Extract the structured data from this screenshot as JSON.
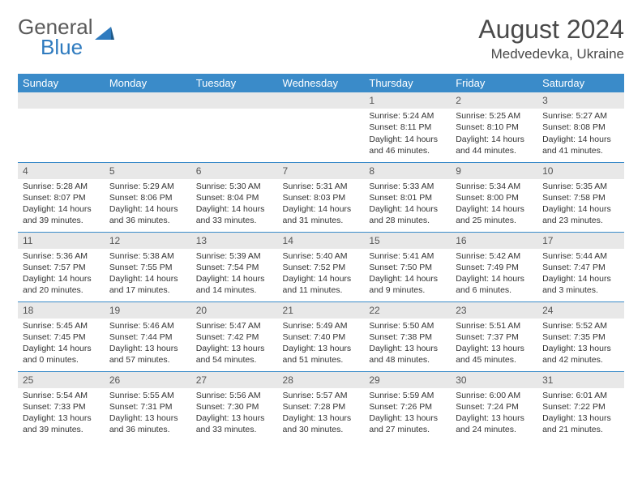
{
  "logo": {
    "text1": "General",
    "text2": "Blue"
  },
  "title": "August 2024",
  "location": "Medvedevka, Ukraine",
  "colors": {
    "header_bg": "#3a8bc9",
    "header_text": "#ffffff",
    "daynum_bg": "#e8e8e8",
    "row_sep": "#3a8bc9",
    "logo_gray": "#5a5a5a",
    "logo_blue": "#2f7bbf"
  },
  "day_headers": [
    "Sunday",
    "Monday",
    "Tuesday",
    "Wednesday",
    "Thursday",
    "Friday",
    "Saturday"
  ],
  "weeks": [
    [
      null,
      null,
      null,
      null,
      {
        "n": "1",
        "sr": "5:24 AM",
        "ss": "8:11 PM",
        "dl": "14 hours and 46 minutes."
      },
      {
        "n": "2",
        "sr": "5:25 AM",
        "ss": "8:10 PM",
        "dl": "14 hours and 44 minutes."
      },
      {
        "n": "3",
        "sr": "5:27 AM",
        "ss": "8:08 PM",
        "dl": "14 hours and 41 minutes."
      }
    ],
    [
      {
        "n": "4",
        "sr": "5:28 AM",
        "ss": "8:07 PM",
        "dl": "14 hours and 39 minutes."
      },
      {
        "n": "5",
        "sr": "5:29 AM",
        "ss": "8:06 PM",
        "dl": "14 hours and 36 minutes."
      },
      {
        "n": "6",
        "sr": "5:30 AM",
        "ss": "8:04 PM",
        "dl": "14 hours and 33 minutes."
      },
      {
        "n": "7",
        "sr": "5:31 AM",
        "ss": "8:03 PM",
        "dl": "14 hours and 31 minutes."
      },
      {
        "n": "8",
        "sr": "5:33 AM",
        "ss": "8:01 PM",
        "dl": "14 hours and 28 minutes."
      },
      {
        "n": "9",
        "sr": "5:34 AM",
        "ss": "8:00 PM",
        "dl": "14 hours and 25 minutes."
      },
      {
        "n": "10",
        "sr": "5:35 AM",
        "ss": "7:58 PM",
        "dl": "14 hours and 23 minutes."
      }
    ],
    [
      {
        "n": "11",
        "sr": "5:36 AM",
        "ss": "7:57 PM",
        "dl": "14 hours and 20 minutes."
      },
      {
        "n": "12",
        "sr": "5:38 AM",
        "ss": "7:55 PM",
        "dl": "14 hours and 17 minutes."
      },
      {
        "n": "13",
        "sr": "5:39 AM",
        "ss": "7:54 PM",
        "dl": "14 hours and 14 minutes."
      },
      {
        "n": "14",
        "sr": "5:40 AM",
        "ss": "7:52 PM",
        "dl": "14 hours and 11 minutes."
      },
      {
        "n": "15",
        "sr": "5:41 AM",
        "ss": "7:50 PM",
        "dl": "14 hours and 9 minutes."
      },
      {
        "n": "16",
        "sr": "5:42 AM",
        "ss": "7:49 PM",
        "dl": "14 hours and 6 minutes."
      },
      {
        "n": "17",
        "sr": "5:44 AM",
        "ss": "7:47 PM",
        "dl": "14 hours and 3 minutes."
      }
    ],
    [
      {
        "n": "18",
        "sr": "5:45 AM",
        "ss": "7:45 PM",
        "dl": "14 hours and 0 minutes."
      },
      {
        "n": "19",
        "sr": "5:46 AM",
        "ss": "7:44 PM",
        "dl": "13 hours and 57 minutes."
      },
      {
        "n": "20",
        "sr": "5:47 AM",
        "ss": "7:42 PM",
        "dl": "13 hours and 54 minutes."
      },
      {
        "n": "21",
        "sr": "5:49 AM",
        "ss": "7:40 PM",
        "dl": "13 hours and 51 minutes."
      },
      {
        "n": "22",
        "sr": "5:50 AM",
        "ss": "7:38 PM",
        "dl": "13 hours and 48 minutes."
      },
      {
        "n": "23",
        "sr": "5:51 AM",
        "ss": "7:37 PM",
        "dl": "13 hours and 45 minutes."
      },
      {
        "n": "24",
        "sr": "5:52 AM",
        "ss": "7:35 PM",
        "dl": "13 hours and 42 minutes."
      }
    ],
    [
      {
        "n": "25",
        "sr": "5:54 AM",
        "ss": "7:33 PM",
        "dl": "13 hours and 39 minutes."
      },
      {
        "n": "26",
        "sr": "5:55 AM",
        "ss": "7:31 PM",
        "dl": "13 hours and 36 minutes."
      },
      {
        "n": "27",
        "sr": "5:56 AM",
        "ss": "7:30 PM",
        "dl": "13 hours and 33 minutes."
      },
      {
        "n": "28",
        "sr": "5:57 AM",
        "ss": "7:28 PM",
        "dl": "13 hours and 30 minutes."
      },
      {
        "n": "29",
        "sr": "5:59 AM",
        "ss": "7:26 PM",
        "dl": "13 hours and 27 minutes."
      },
      {
        "n": "30",
        "sr": "6:00 AM",
        "ss": "7:24 PM",
        "dl": "13 hours and 24 minutes."
      },
      {
        "n": "31",
        "sr": "6:01 AM",
        "ss": "7:22 PM",
        "dl": "13 hours and 21 minutes."
      }
    ]
  ],
  "labels": {
    "sunrise": "Sunrise: ",
    "sunset": "Sunset: ",
    "daylight": "Daylight: "
  }
}
